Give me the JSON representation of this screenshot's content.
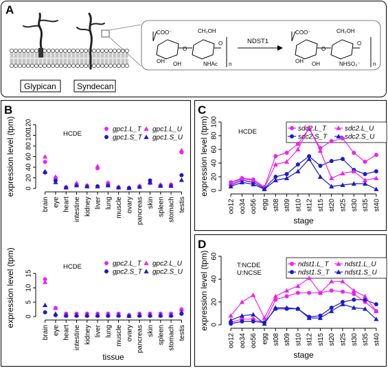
{
  "panels": {
    "a": {
      "letter": "A",
      "labels": {
        "glypican": "Glypican",
        "syndecan": "Syndecan",
        "enzyme": "NDST1",
        "n1": "n",
        "n2": "n"
      },
      "chem": {
        "coo1": "COO⁻",
        "ch2oh1": "CH₂OH",
        "oh1": "OH",
        "oh2": "OH",
        "nhac": "NHAc",
        "coo2": "COO⁻",
        "ch2oh2": "CH₂OH",
        "oh3": "OH",
        "oh4": "OH",
        "nhso3": "NHSO₃⁻"
      }
    },
    "b": {
      "letter": "B"
    },
    "c": {
      "letter": "C"
    },
    "d": {
      "letter": "D"
    }
  },
  "series_colors": {
    "L": "#ee22ee",
    "S": "#1a1acc"
  },
  "chart_data": [
    {
      "id": "b1",
      "type": "scatter",
      "annotation": "HCDE",
      "xlabel": "",
      "ylabel": "expression level (tpm)",
      "categories": [
        "brain",
        "eye",
        "heart",
        "intestine",
        "kidney",
        "liver",
        "lung",
        "muscle",
        "ovary",
        "pancreas",
        "skin",
        "spleen",
        "stomach",
        "testis"
      ],
      "ylim": [
        0,
        120
      ],
      "yticks": [
        0,
        20,
        40,
        60,
        80,
        100,
        120
      ],
      "legend": [
        "gpc1.L_T",
        "gpc1.S_T",
        "gpc1.L_U",
        "gpc1.S_U"
      ],
      "series": [
        {
          "name": "gpc1.L_T",
          "color": "L",
          "marker": "circle",
          "values": [
            50,
            20,
            2,
            8,
            5,
            38,
            10,
            2,
            1,
            4,
            10,
            6,
            7,
            68
          ]
        },
        {
          "name": "gpc1.S_T",
          "color": "S",
          "marker": "circle",
          "values": [
            30,
            15,
            2,
            6,
            4,
            4,
            6,
            2,
            1,
            3,
            15,
            5,
            6,
            25
          ]
        },
        {
          "name": "gpc1.L_U",
          "color": "L",
          "marker": "triangle",
          "values": [
            60,
            22,
            3,
            10,
            6,
            42,
            11,
            3,
            1,
            5,
            11,
            7,
            8,
            72
          ]
        },
        {
          "name": "gpc1.S_U",
          "color": "S",
          "marker": "triangle",
          "values": [
            32,
            12,
            2,
            6,
            4,
            4,
            6,
            2,
            1,
            3,
            12,
            5,
            5,
            16
          ]
        }
      ]
    },
    {
      "id": "b2",
      "type": "scatter",
      "annotation": "HCDE",
      "xlabel": "tissue",
      "ylabel": "expression level (tpm)",
      "categories": [
        "brain",
        "eye",
        "heart",
        "intestine",
        "kidney",
        "liver",
        "lung",
        "muscle",
        "ovary",
        "pancreas",
        "skin",
        "spleen",
        "stomach",
        "testis"
      ],
      "ylim": [
        0,
        20
      ],
      "yticks": [
        0,
        5,
        10,
        15
      ],
      "legend": [
        "gpc2.L_T",
        "gpc2.S_T",
        "gpc2.L_U",
        "gpc2.S_U"
      ],
      "series": [
        {
          "name": "gpc2.L_T",
          "color": "L",
          "marker": "circle",
          "values": [
            13,
            3,
            1,
            1,
            1,
            1,
            1,
            1,
            0.5,
            1,
            1,
            1,
            1,
            2.5
          ]
        },
        {
          "name": "gpc2.S_T",
          "color": "S",
          "marker": "circle",
          "values": [
            1.5,
            0.5,
            0.3,
            0.3,
            0.3,
            0.3,
            0.3,
            0.3,
            0.2,
            0.3,
            0.3,
            0.3,
            0.3,
            1
          ]
        },
        {
          "name": "gpc2.L_U",
          "color": "L",
          "marker": "triangle",
          "values": [
            12,
            3,
            1,
            1,
            1,
            1,
            1,
            1,
            0.5,
            1,
            1,
            1,
            1,
            2.5
          ]
        },
        {
          "name": "gpc2.S_U",
          "color": "S",
          "marker": "triangle",
          "values": [
            4,
            1,
            0.5,
            0.5,
            0.5,
            0.5,
            0.5,
            0.5,
            0.3,
            0.5,
            0.5,
            0.5,
            0.5,
            1.5
          ]
        }
      ]
    },
    {
      "id": "c",
      "type": "line",
      "annotation": "HCDE",
      "xlabel": "stage",
      "ylabel": "expression level (tpm)",
      "categories": [
        "oo12",
        "oo34",
        "oo56",
        "egg",
        "st08",
        "st09",
        "st10",
        "st12",
        "st15",
        "st20",
        "st25",
        "st30",
        "st35",
        "st40"
      ],
      "ylim": [
        0,
        100
      ],
      "yticks": [
        0,
        20,
        40,
        60,
        80,
        100
      ],
      "legend": [
        "sdc2.L_T",
        "sdc2.S_T",
        "sdc2.L_U",
        "sdc2.S_U"
      ],
      "series": [
        {
          "name": "sdc2.L_T",
          "color": "L",
          "marker": "circle",
          "values": [
            12,
            18,
            16,
            5,
            50,
            55,
            68,
            90,
            62,
            72,
            76,
            55,
            42,
            52
          ]
        },
        {
          "name": "sdc2.S_T",
          "color": "S",
          "marker": "circle",
          "values": [
            8,
            15,
            12,
            3,
            20,
            24,
            38,
            50,
            36,
            43,
            46,
            30,
            24,
            28
          ]
        },
        {
          "name": "sdc2.L_U",
          "color": "L",
          "marker": "triangle",
          "values": [
            10,
            17,
            15,
            4,
            38,
            42,
            60,
            92,
            58,
            18,
            25,
            28,
            15,
            18
          ]
        },
        {
          "name": "sdc2.S_U",
          "color": "S",
          "marker": "triangle",
          "values": [
            6,
            12,
            9,
            2,
            15,
            18,
            28,
            46,
            20,
            6,
            8,
            10,
            10,
            2
          ]
        }
      ]
    },
    {
      "id": "d",
      "type": "line",
      "annotation": "T:NCDE\nU:NCSE",
      "annotation_lines": [
        "T:NCDE",
        "U:NCSE"
      ],
      "xlabel": "stage",
      "ylabel": "expression level (tpm)",
      "categories": [
        "oo12",
        "oo34",
        "oo56",
        "egg",
        "st08",
        "st09",
        "st10",
        "st12",
        "st15",
        "st20",
        "st25",
        "st30",
        "st35",
        "st40"
      ],
      "ylim": [
        0,
        60
      ],
      "yticks": [
        0,
        20,
        40,
        60
      ],
      "legend": [
        "ndst1.L_T",
        "ndst1.S_T",
        "ndst1.L_U",
        "ndst1.S_U"
      ],
      "series": [
        {
          "name": "ndst1.L_T",
          "color": "L",
          "marker": "circle",
          "values": [
            2,
            5,
            5,
            2,
            22,
            25,
            28,
            28,
            28,
            30,
            29,
            27,
            20,
            12
          ]
        },
        {
          "name": "ndst1.S_T",
          "color": "S",
          "marker": "circle",
          "values": [
            1,
            3,
            3,
            2,
            14,
            14,
            14,
            7,
            8,
            15,
            20,
            22,
            22,
            18
          ]
        },
        {
          "name": "ndst1.L_U",
          "color": "L",
          "marker": "triangle",
          "values": [
            8,
            20,
            26,
            6,
            25,
            30,
            34,
            41,
            28,
            38,
            38,
            30,
            25,
            12
          ]
        },
        {
          "name": "ndst1.S_U",
          "color": "S",
          "marker": "triangle",
          "values": [
            4,
            8,
            9,
            1,
            15,
            15,
            14,
            6,
            6,
            12,
            18,
            15,
            14,
            5
          ]
        }
      ]
    }
  ]
}
